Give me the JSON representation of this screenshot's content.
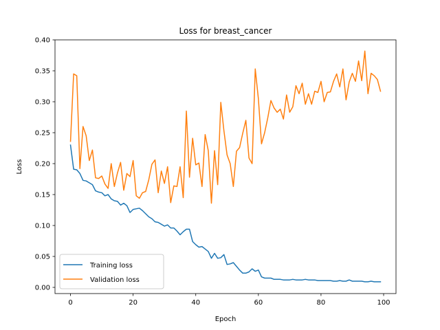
{
  "chart_data": {
    "type": "line",
    "title": "Loss for breast_cancer",
    "xlabel": "Epoch",
    "ylabel": "Loss",
    "xlim": [
      -4.95,
      103.95
    ],
    "ylim": [
      -0.01,
      0.4
    ],
    "xticks": [
      0,
      20,
      40,
      60,
      80,
      100
    ],
    "yticks": [
      0.0,
      0.05,
      0.1,
      0.15,
      0.2,
      0.25,
      0.3,
      0.35,
      0.4
    ],
    "ytick_labels": [
      "0.00",
      "0.05",
      "0.10",
      "0.15",
      "0.20",
      "0.25",
      "0.30",
      "0.35",
      "0.40"
    ],
    "grid": false,
    "legend_position": "lower-left",
    "series": [
      {
        "name": "Training loss",
        "color": "#1f77b4",
        "x": [
          0,
          1,
          2,
          3,
          4,
          5,
          6,
          7,
          8,
          9,
          10,
          11,
          12,
          13,
          14,
          15,
          16,
          17,
          18,
          19,
          20,
          21,
          22,
          23,
          24,
          25,
          26,
          27,
          28,
          29,
          30,
          31,
          32,
          33,
          34,
          35,
          36,
          37,
          38,
          39,
          40,
          41,
          42,
          43,
          44,
          45,
          46,
          47,
          48,
          49,
          50,
          51,
          52,
          53,
          54,
          55,
          56,
          57,
          58,
          59,
          60,
          61,
          62,
          63,
          64,
          65,
          66,
          67,
          68,
          69,
          70,
          71,
          72,
          73,
          74,
          75,
          76,
          77,
          78,
          79,
          80,
          81,
          82,
          83,
          84,
          85,
          86,
          87,
          88,
          89,
          90,
          91,
          92,
          93,
          94,
          95,
          96,
          97,
          98,
          99
        ],
        "values": [
          0.23,
          0.191,
          0.19,
          0.184,
          0.173,
          0.172,
          0.169,
          0.166,
          0.156,
          0.154,
          0.153,
          0.148,
          0.15,
          0.143,
          0.14,
          0.139,
          0.133,
          0.136,
          0.132,
          0.121,
          0.126,
          0.127,
          0.128,
          0.124,
          0.119,
          0.114,
          0.111,
          0.106,
          0.105,
          0.102,
          0.099,
          0.101,
          0.096,
          0.096,
          0.091,
          0.085,
          0.09,
          0.094,
          0.094,
          0.074,
          0.069,
          0.065,
          0.066,
          0.062,
          0.058,
          0.047,
          0.055,
          0.047,
          0.048,
          0.053,
          0.037,
          0.038,
          0.04,
          0.034,
          0.028,
          0.023,
          0.023,
          0.025,
          0.03,
          0.026,
          0.028,
          0.017,
          0.015,
          0.015,
          0.015,
          0.013,
          0.013,
          0.013,
          0.012,
          0.012,
          0.012,
          0.013,
          0.012,
          0.012,
          0.012,
          0.013,
          0.012,
          0.012,
          0.012,
          0.011,
          0.011,
          0.011,
          0.011,
          0.011,
          0.01,
          0.01,
          0.011,
          0.01,
          0.01,
          0.012,
          0.01,
          0.01,
          0.01,
          0.01,
          0.009,
          0.009,
          0.01,
          0.009,
          0.009,
          0.009
        ]
      },
      {
        "name": "Validation loss",
        "color": "#ff7f0e",
        "x": [
          0,
          1,
          2,
          3,
          4,
          5,
          6,
          7,
          8,
          9,
          10,
          11,
          12,
          13,
          14,
          15,
          16,
          17,
          18,
          19,
          20,
          21,
          22,
          23,
          24,
          25,
          26,
          27,
          28,
          29,
          30,
          31,
          32,
          33,
          34,
          35,
          36,
          37,
          38,
          39,
          40,
          41,
          42,
          43,
          44,
          45,
          46,
          47,
          48,
          49,
          50,
          51,
          52,
          53,
          54,
          55,
          56,
          57,
          58,
          59,
          60,
          61,
          62,
          63,
          64,
          65,
          66,
          67,
          68,
          69,
          70,
          71,
          72,
          73,
          74,
          75,
          76,
          77,
          78,
          79,
          80,
          81,
          82,
          83,
          84,
          85,
          86,
          87,
          88,
          89,
          90,
          91,
          92,
          93,
          94,
          95,
          96,
          97,
          98,
          99
        ],
        "values": [
          0.236,
          0.345,
          0.342,
          0.192,
          0.26,
          0.245,
          0.205,
          0.222,
          0.177,
          0.176,
          0.18,
          0.167,
          0.16,
          0.2,
          0.163,
          0.185,
          0.202,
          0.157,
          0.184,
          0.179,
          0.205,
          0.148,
          0.144,
          0.153,
          0.155,
          0.174,
          0.199,
          0.206,
          0.153,
          0.188,
          0.168,
          0.195,
          0.137,
          0.164,
          0.163,
          0.195,
          0.145,
          0.285,
          0.178,
          0.241,
          0.198,
          0.201,
          0.163,
          0.247,
          0.221,
          0.136,
          0.221,
          0.166,
          0.299,
          0.253,
          0.214,
          0.2,
          0.163,
          0.22,
          0.226,
          0.249,
          0.27,
          0.209,
          0.2,
          0.353,
          0.305,
          0.232,
          0.25,
          0.274,
          0.302,
          0.29,
          0.283,
          0.288,
          0.272,
          0.311,
          0.283,
          0.292,
          0.326,
          0.313,
          0.33,
          0.296,
          0.313,
          0.296,
          0.317,
          0.315,
          0.333,
          0.3,
          0.315,
          0.316,
          0.333,
          0.345,
          0.324,
          0.353,
          0.303,
          0.332,
          0.346,
          0.333,
          0.366,
          0.334,
          0.382,
          0.313,
          0.346,
          0.342,
          0.336,
          0.317
        ]
      }
    ]
  }
}
